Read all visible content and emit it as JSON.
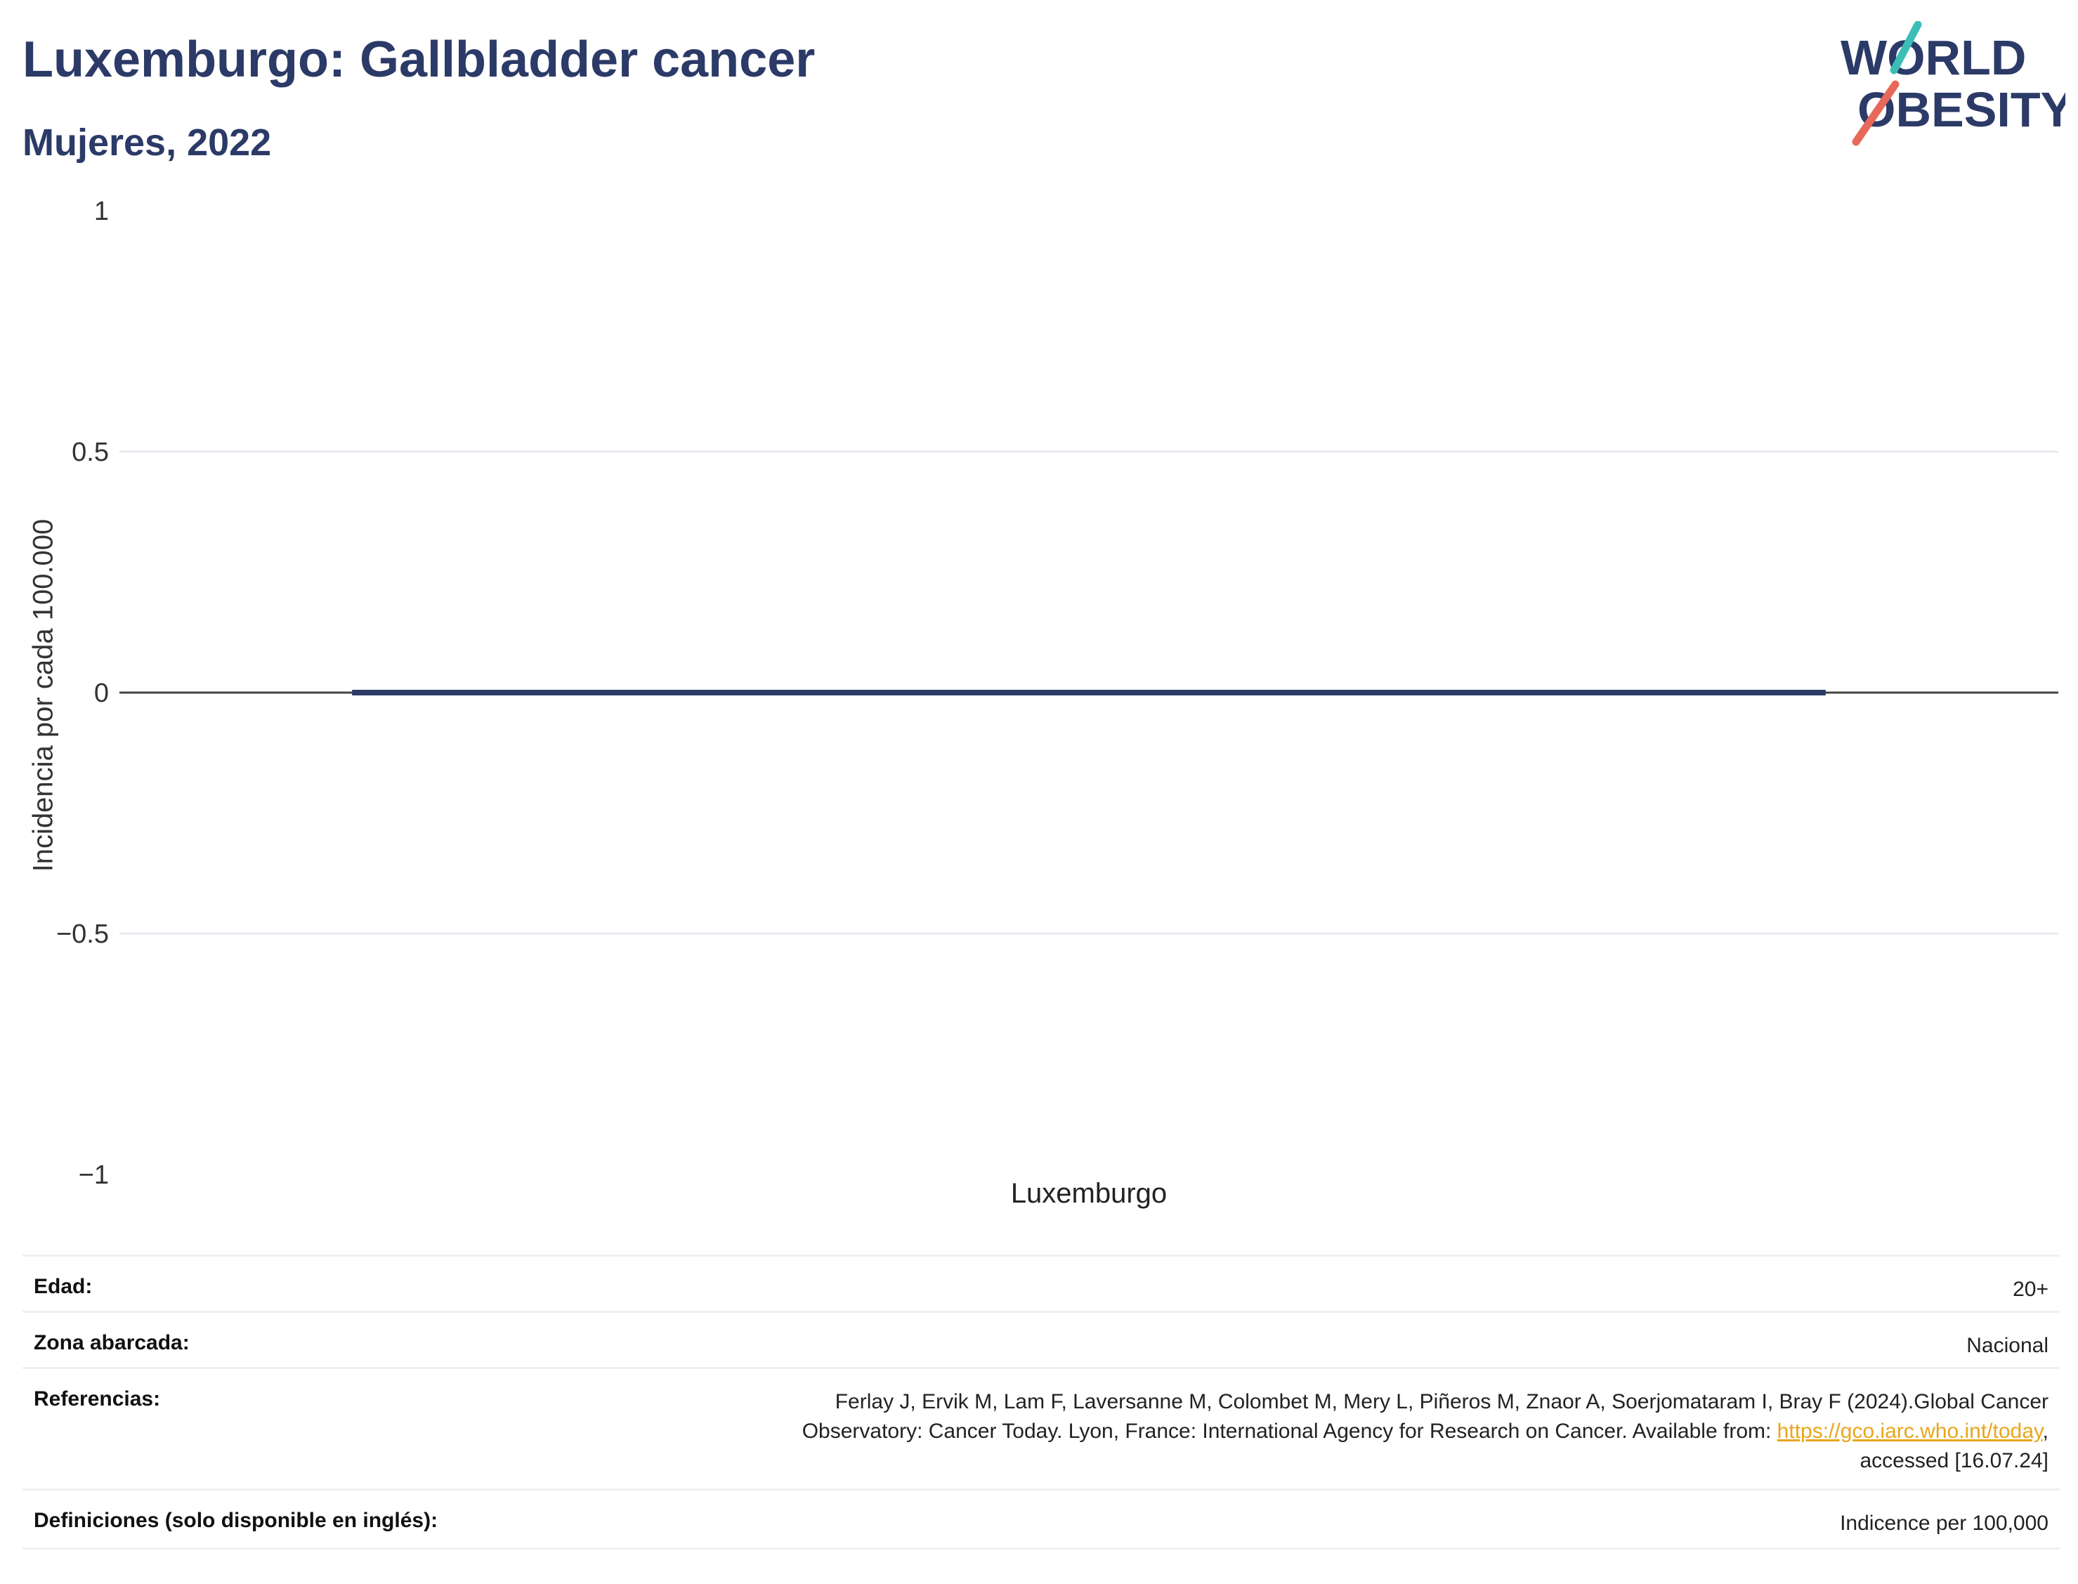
{
  "header": {
    "title": "Luxemburgo: Gallbladder cancer",
    "subtitle": "Mujeres, 2022"
  },
  "logo": {
    "line1": "WORLD",
    "line2": "OBESITY",
    "colors": {
      "text": "#2b3a67",
      "teal": "#3dbdb8",
      "coral": "#e8685a"
    }
  },
  "chart_data": {
    "type": "bar",
    "categories": [
      "Luxemburgo"
    ],
    "series": [
      {
        "values": [
          0
        ]
      }
    ],
    "ylabel": "Incidencia por cada 100.000",
    "xlabel": "",
    "ylim": [
      -1,
      1
    ],
    "yticks": [
      1,
      0.5,
      0,
      -0.5,
      -1
    ],
    "ytick_labels": [
      "1",
      "0.5",
      "0",
      "−0.5",
      "−1"
    ],
    "grid": true,
    "bar_color": "#2b3a67"
  },
  "info": {
    "rows": [
      {
        "key": "Edad:",
        "value": "20+"
      },
      {
        "key": "Zona abarcada:",
        "value": "Nacional"
      },
      {
        "key": "Referencias:",
        "value_line1": "Ferlay J, Ervik M, Lam F, Laversanne M, Colombet M, Mery L, Piñeros M, Znaor A, Soerjomataram I, Bray F (2024).Global Cancer",
        "value_line2_pre": "Observatory: Cancer Today. Lyon, France: International Agency for Research on Cancer. Available from: ",
        "value_link": "https://gco.iarc.who.int/today",
        "value_line2_post": ",",
        "value_line3": "accessed [16.07.24]"
      },
      {
        "key": "Definiciones (solo disponible en inglés):",
        "value": "Indicence per 100,000"
      }
    ]
  }
}
